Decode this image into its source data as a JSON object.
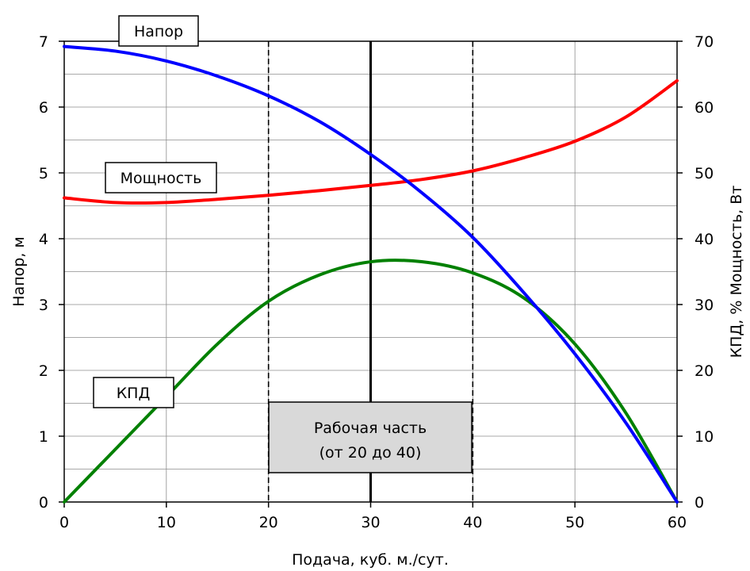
{
  "chart_data": {
    "type": "line",
    "xlabel": "Подача, куб. м./сут.",
    "ylabel_left": "Напор, м",
    "ylabel_right": "КПД, %  Мощность, Вт",
    "xlim": [
      0,
      60
    ],
    "ylim_left": [
      0,
      7
    ],
    "ylim_right": [
      0,
      70
    ],
    "x_ticks": [
      "0",
      "10",
      "20",
      "30",
      "40",
      "50",
      "60"
    ],
    "y_left_ticks": [
      "0",
      "1",
      "2",
      "3",
      "4",
      "5",
      "6",
      "7"
    ],
    "y_right_ticks": [
      "0",
      "10",
      "20",
      "30",
      "40",
      "50",
      "60",
      "70"
    ],
    "grid": true,
    "colors": {
      "head": "#0000ff",
      "power": "#ff0000",
      "efficiency": "#008000"
    },
    "x": [
      0,
      5,
      10,
      15,
      20,
      25,
      30,
      35,
      40,
      45,
      50,
      55,
      60
    ],
    "series": [
      {
        "name": "Напор",
        "axis": "left",
        "color": "#0000ff",
        "values": [
          6.92,
          6.85,
          6.7,
          6.47,
          6.17,
          5.78,
          5.28,
          4.7,
          4.02,
          3.18,
          2.25,
          1.2,
          0.0
        ]
      },
      {
        "name": "Мощность",
        "axis": "right",
        "color": "#ff0000",
        "values": [
          46.2,
          45.5,
          45.5,
          46.0,
          46.6,
          47.3,
          48.1,
          49.0,
          50.3,
          52.3,
          54.8,
          58.5,
          64.0
        ]
      },
      {
        "name": "КПД",
        "axis": "right",
        "color": "#008000",
        "values": [
          0,
          8,
          16,
          24,
          30.5,
          34.5,
          36.5,
          36.5,
          34.8,
          31.0,
          24.0,
          13.5,
          0
        ]
      }
    ],
    "vlines": [
      {
        "x": 20,
        "style": "dashed"
      },
      {
        "x": 30,
        "style": "solid"
      },
      {
        "x": 40,
        "style": "dashed"
      }
    ],
    "annotations": {
      "head_label": "Напор",
      "power_label": "Мощность",
      "efficiency_label": "КПД",
      "working_box_line1": "Рабочая часть",
      "working_box_line2": "(от 20 до 40)"
    }
  }
}
